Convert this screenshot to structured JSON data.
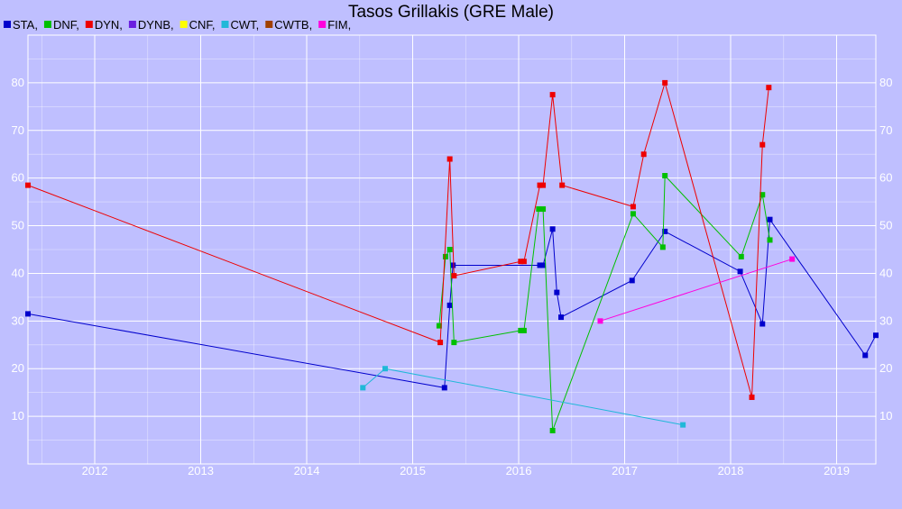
{
  "chart_data": {
    "type": "line",
    "title": "Tasos Grillakis (GRE Male)",
    "xlabel": "",
    "ylabel": "",
    "x_ticks": [
      "2012",
      "2013",
      "2014",
      "2015",
      "2016",
      "2017",
      "2018",
      "2019"
    ],
    "y_ticks": [
      10,
      20,
      30,
      40,
      50,
      60,
      70,
      80
    ],
    "xlim": [
      2011.37,
      2019.37
    ],
    "ylim": [
      0,
      90
    ],
    "grid": true,
    "legend_position": "top-left",
    "series": [
      {
        "name": "STA",
        "color": "#0000cc",
        "points": [
          [
            2011.37,
            31.5
          ],
          [
            2015.3,
            16
          ],
          [
            2015.35,
            33.3
          ],
          [
            2015.38,
            41.7
          ],
          [
            2016.2,
            41.7
          ],
          [
            2016.23,
            41.7
          ],
          [
            2016.32,
            49.3
          ],
          [
            2016.36,
            36
          ],
          [
            2016.4,
            30.8
          ],
          [
            2017.07,
            38.5
          ],
          [
            2017.38,
            48.8
          ],
          [
            2018.09,
            40.4
          ],
          [
            2018.3,
            29.4
          ],
          [
            2018.37,
            51.3
          ],
          [
            2019.27,
            22.8
          ],
          [
            2019.37,
            27
          ]
        ]
      },
      {
        "name": "DNF",
        "color": "#00c000",
        "points": [
          [
            2015.25,
            29
          ],
          [
            2015.31,
            43.5
          ],
          [
            2015.35,
            45
          ],
          [
            2015.39,
            25.5
          ],
          [
            2016.02,
            28
          ],
          [
            2016.05,
            28
          ],
          [
            2016.19,
            53.5
          ],
          [
            2016.23,
            53.5
          ],
          [
            2016.32,
            7
          ],
          [
            2017.08,
            52.5
          ],
          [
            2017.36,
            45.5
          ],
          [
            2017.38,
            60.5
          ],
          [
            2018.1,
            43.5
          ],
          [
            2018.3,
            56.5
          ],
          [
            2018.37,
            47
          ]
        ]
      },
      {
        "name": "DYN",
        "color": "#ee0000",
        "points": [
          [
            2011.37,
            58.5
          ],
          [
            2015.26,
            25.5
          ],
          [
            2015.35,
            64
          ],
          [
            2015.39,
            39.5
          ],
          [
            2016.02,
            42.5
          ],
          [
            2016.05,
            42.5
          ],
          [
            2016.2,
            58.5
          ],
          [
            2016.23,
            58.5
          ],
          [
            2016.32,
            77.5
          ],
          [
            2016.41,
            58.5
          ],
          [
            2017.08,
            54
          ],
          [
            2017.18,
            65
          ],
          [
            2017.38,
            80
          ],
          [
            2018.2,
            14
          ],
          [
            2018.3,
            67
          ],
          [
            2018.36,
            79
          ]
        ]
      },
      {
        "name": "DYNB",
        "color": "#6a1fe0",
        "points": []
      },
      {
        "name": "CNF",
        "color": "#ffff00",
        "points": []
      },
      {
        "name": "CWT",
        "color": "#20b8d8",
        "points": [
          [
            2014.53,
            16
          ],
          [
            2014.74,
            20
          ],
          [
            2017.55,
            8.2
          ]
        ]
      },
      {
        "name": "CWTB",
        "color": "#a04000",
        "points": []
      },
      {
        "name": "FIM",
        "color": "#ff00dd",
        "points": [
          [
            2016.77,
            30
          ],
          [
            2018.58,
            43
          ]
        ]
      }
    ]
  }
}
